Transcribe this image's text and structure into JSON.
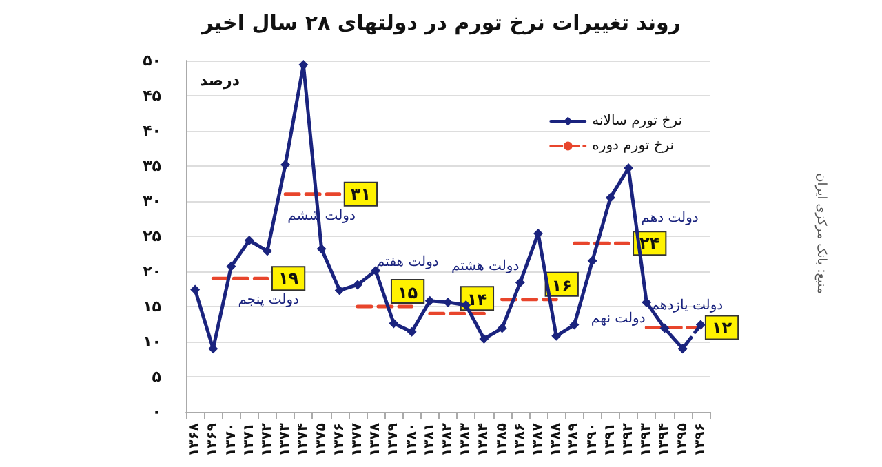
{
  "chart_data": {
    "type": "line",
    "title": "روند تغییرات نرخ تورم در دولتهای ۲۸ سال اخیر",
    "ylabel": "درصد",
    "categories": [
      "۱۳۶۸",
      "۱۳۶۹",
      "۱۳۷۰",
      "۱۳۷۱",
      "۱۳۷۲",
      "۱۳۷۳",
      "۱۳۷۴",
      "۱۳۷۵",
      "۱۳۷۶",
      "۱۳۷۷",
      "۱۳۷۸",
      "۱۳۷۹",
      "۱۳۸۰",
      "۱۳۸۱",
      "۱۳۸۲",
      "۱۳۸۳",
      "۱۳۸۴",
      "۱۳۸۵",
      "۱۳۸۶",
      "۱۳۸۷",
      "۱۳۸۸",
      "۱۳۸۹",
      "۱۳۹۰",
      "۱۳۹۱",
      "۱۳۹۲",
      "۱۳۹۳",
      "۱۳۹۴",
      "۱۳۹۵",
      "۱۳۹۶"
    ],
    "series": [
      {
        "name": "نرخ تورم سالانه",
        "color": "#1a237e",
        "marker": "diamond",
        "line_style": "solid",
        "values": [
          17.4,
          9,
          20.7,
          24.4,
          22.9,
          35.2,
          49.4,
          23.2,
          17.3,
          18.1,
          20.1,
          12.6,
          11.4,
          15.8,
          15.6,
          15.2,
          10.4,
          11.9,
          18.4,
          25.4,
          10.8,
          12.4,
          21.5,
          30.5,
          34.7,
          15.6,
          11.9,
          9,
          null
        ]
      },
      {
        "color": "#1a237e",
        "marker": "diamond",
        "line_style": "dashed",
        "values": [
          null,
          null,
          null,
          null,
          null,
          null,
          null,
          null,
          null,
          null,
          null,
          null,
          null,
          null,
          null,
          null,
          null,
          null,
          null,
          null,
          null,
          null,
          null,
          null,
          null,
          null,
          null,
          9,
          12.4
        ]
      },
      {
        "name": "نرخ تورم دوره",
        "color": "#e8452c",
        "marker": "none",
        "line_style": "dashed",
        "values": [
          null,
          19,
          19,
          19,
          19,
          null,
          null,
          null,
          null,
          null,
          null,
          null,
          null,
          null,
          null,
          null,
          null,
          null,
          null,
          null,
          null,
          null,
          null,
          null,
          null,
          null,
          null,
          null,
          null
        ],
        "value_labels": [
          null,
          null,
          null,
          null,
          "۱۹",
          null,
          null,
          null,
          null,
          null,
          null,
          null,
          null,
          null,
          null,
          null,
          null,
          null,
          null,
          null,
          null,
          null,
          null,
          null,
          null,
          null,
          null,
          null,
          null
        ]
      },
      {
        "color": "#e8452c",
        "marker": "none",
        "line_style": "dashed",
        "values": [
          null,
          null,
          null,
          null,
          null,
          31,
          31,
          31,
          31,
          null,
          null,
          null,
          null,
          null,
          null,
          null,
          null,
          null,
          null,
          null,
          null,
          null,
          null,
          null,
          null,
          null,
          null,
          null,
          null
        ],
        "value_labels": [
          null,
          null,
          null,
          null,
          null,
          null,
          null,
          null,
          "۳۱",
          null,
          null,
          null,
          null,
          null,
          null,
          null,
          null,
          null,
          null,
          null,
          null,
          null,
          null,
          null,
          null,
          null,
          null,
          null,
          null
        ]
      },
      {
        "color": "#e8452c",
        "marker": "none",
        "line_style": "dashed",
        "values": [
          null,
          null,
          null,
          null,
          null,
          null,
          null,
          null,
          null,
          15,
          15,
          15,
          15,
          null,
          null,
          null,
          null,
          null,
          null,
          null,
          null,
          null,
          null,
          null,
          null,
          null,
          null,
          null,
          null
        ],
        "value_labels": [
          null,
          null,
          null,
          null,
          null,
          null,
          null,
          null,
          null,
          null,
          null,
          null,
          "۱۵",
          null,
          null,
          null,
          null,
          null,
          null,
          null,
          null,
          null,
          null,
          null,
          null,
          null,
          null,
          null,
          null
        ]
      },
      {
        "color": "#e8452c",
        "marker": "none",
        "line_style": "dashed",
        "values": [
          null,
          null,
          null,
          null,
          null,
          null,
          null,
          null,
          null,
          null,
          null,
          null,
          null,
          14,
          14,
          14,
          14,
          null,
          null,
          null,
          null,
          null,
          null,
          null,
          null,
          null,
          null,
          null,
          null
        ],
        "value_labels": [
          null,
          null,
          null,
          null,
          null,
          null,
          null,
          null,
          null,
          null,
          null,
          null,
          null,
          null,
          null,
          null,
          "۱۴",
          null,
          null,
          null,
          null,
          null,
          null,
          null,
          null,
          null,
          null,
          null,
          null
        ]
      },
      {
        "color": "#e8452c",
        "marker": "none",
        "line_style": "dashed",
        "values": [
          null,
          null,
          null,
          null,
          null,
          null,
          null,
          null,
          null,
          null,
          null,
          null,
          null,
          null,
          null,
          null,
          null,
          16,
          16,
          16,
          16,
          null,
          null,
          null,
          null,
          null,
          null,
          null,
          null
        ],
        "value_labels": [
          null,
          null,
          null,
          null,
          null,
          null,
          null,
          null,
          null,
          null,
          null,
          null,
          null,
          null,
          null,
          null,
          null,
          null,
          null,
          null,
          "۱۶",
          null,
          null,
          null,
          null,
          null,
          null,
          null,
          null
        ]
      },
      {
        "color": "#e8452c",
        "marker": "none",
        "line_style": "dashed",
        "values": [
          null,
          null,
          null,
          null,
          null,
          null,
          null,
          null,
          null,
          null,
          null,
          null,
          null,
          null,
          null,
          null,
          null,
          null,
          null,
          null,
          null,
          24,
          24,
          24,
          24,
          null,
          null,
          null,
          null
        ],
        "value_labels": [
          null,
          null,
          null,
          null,
          null,
          null,
          null,
          null,
          null,
          null,
          null,
          null,
          null,
          null,
          null,
          null,
          null,
          null,
          null,
          null,
          null,
          null,
          null,
          null,
          "۲۴",
          null,
          null,
          null,
          null
        ]
      },
      {
        "color": "#e8452c",
        "marker": "none",
        "line_style": "dashed",
        "values": [
          null,
          null,
          null,
          null,
          null,
          null,
          null,
          null,
          null,
          null,
          null,
          null,
          null,
          null,
          null,
          null,
          null,
          null,
          null,
          null,
          null,
          null,
          null,
          null,
          null,
          12,
          12,
          12,
          12
        ],
        "value_labels": [
          null,
          null,
          null,
          null,
          null,
          null,
          null,
          null,
          null,
          null,
          null,
          null,
          null,
          null,
          null,
          null,
          null,
          null,
          null,
          null,
          null,
          null,
          null,
          null,
          null,
          null,
          null,
          null,
          "۱۲"
        ]
      }
    ],
    "ylim": [
      0,
      50
    ],
    "yticks": [
      {
        "value": 0,
        "label": "۰"
      },
      {
        "value": 5,
        "label": "۵"
      },
      {
        "value": 10,
        "label": "۱۰"
      },
      {
        "value": 15,
        "label": "۱۵"
      },
      {
        "value": 20,
        "label": "۲۰"
      },
      {
        "value": 25,
        "label": "۲۵"
      },
      {
        "value": 30,
        "label": "۳۰"
      },
      {
        "value": 35,
        "label": "۳۵"
      },
      {
        "value": 40,
        "label": "۴۰"
      },
      {
        "value": 45,
        "label": "۴۵"
      },
      {
        "value": 50,
        "label": "۵۰"
      }
    ],
    "grid": "y",
    "legend": "top right",
    "annotations": [
      {
        "text": "دولت پنجم",
        "x": "۱۳۷۱",
        "y": 19
      },
      {
        "text": "دولت ششم",
        "x": "۱۳۷۵",
        "y": 31
      },
      {
        "text": "دولت هفتم",
        "x": "۱۳۷۹",
        "y": 15
      },
      {
        "text": "دولت هشتم",
        "x": "۱۳۸۳",
        "y": 14
      },
      {
        "text": "دولت نهم",
        "x": "۱۳۸۸",
        "y": 16
      },
      {
        "text": "دولت دهم",
        "x": "۱۳۹۲",
        "y": 24
      },
      {
        "text": "دولت یازدهم",
        "x": "۱۳۹۶",
        "y": 12
      },
      "منبع: بانک مرکزی ایران"
    ]
  }
}
